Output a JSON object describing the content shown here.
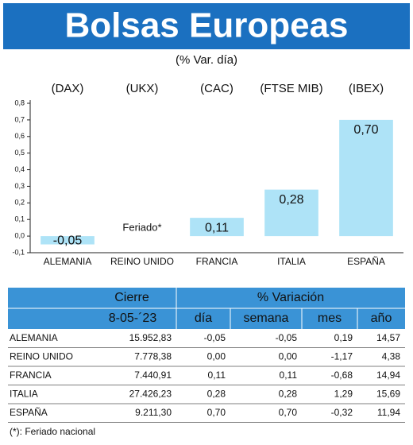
{
  "chart_data": {
    "type": "bar",
    "title": "Bolsas Europeas",
    "subtitle": "(% Var. día)",
    "indices": [
      "(DAX)",
      "(UKX)",
      "(CAC)",
      "(FTSE MIB)",
      "(IBEX)"
    ],
    "categories": [
      "ALEMANIA",
      "REINO UNIDO",
      "FRANCIA",
      "ITALIA",
      "ESPAÑA"
    ],
    "values": [
      -0.05,
      null,
      0.11,
      0.28,
      0.7
    ],
    "value_labels": [
      "-0,05",
      "Feriado*",
      "0,11",
      "0,28",
      "0,70"
    ],
    "color": "#aee3f7",
    "ylim": [
      -0.1,
      0.8
    ],
    "yticks": [
      {
        "value": -0.1,
        "label": "-0,1"
      },
      {
        "value": 0,
        "label": "0,0"
      },
      {
        "value": 0.1,
        "label": "0,1"
      },
      {
        "value": 0.2,
        "label": "0,2"
      },
      {
        "value": 0.3,
        "label": "0,3"
      },
      {
        "value": 0.4,
        "label": "0,4"
      },
      {
        "value": 0.5,
        "label": "0,5"
      },
      {
        "value": 0.6,
        "label": "0,6"
      },
      {
        "value": 0.7,
        "label": "0,7"
      },
      {
        "value": 0.8,
        "label": "0,8"
      }
    ],
    "grid": false
  },
  "table": {
    "groups": [
      "Cierre",
      "% Variación"
    ],
    "header": [
      "8-05-´23",
      "día",
      "semana",
      "mes",
      "año"
    ],
    "rows": [
      [
        "ALEMANIA",
        "15.952,83",
        "-0,05",
        "-0,05",
        "0,19",
        "14,57"
      ],
      [
        "REINO UNIDO",
        "7.778,38",
        "0,00",
        "0,00",
        "-1,17",
        "4,38"
      ],
      [
        "FRANCIA",
        "7.440,91",
        "0,11",
        "0,11",
        "-0,68",
        "14,94"
      ],
      [
        "ITALIA",
        "27.426,23",
        "0,28",
        "0,28",
        "1,29",
        "15,69"
      ],
      [
        "ESPAÑA",
        "9.211,30",
        "0,70",
        "0,70",
        "-0,32",
        "11,94"
      ]
    ],
    "footnote": "(*): Feriado nacional"
  }
}
